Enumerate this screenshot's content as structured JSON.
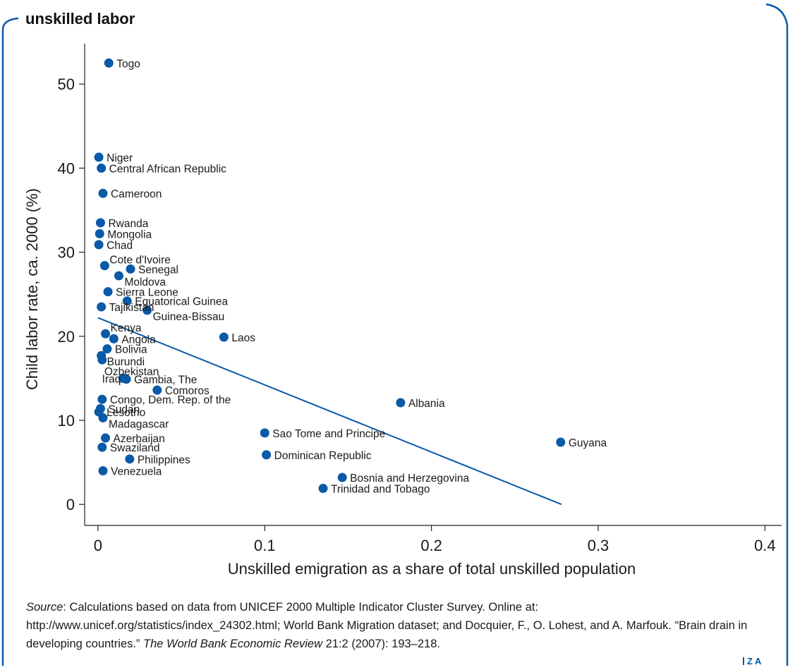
{
  "figure": {
    "title": "unskilled labor",
    "source_label": "Source",
    "source_text": ": Calculations based on data from UNICEF 2000 Multiple Indicator Cluster Survey. Online at: http://www.unicef.org/statistics/index_24302.html; World Bank Migration dataset; and Docquier, F., O. Lohest, and A. Marfouk. “Brain drain in developing countries.” ",
    "source_journal": "The World Bank Economic Review",
    "source_tail": " 21:2 (2007): 193–218.",
    "logo": "ZA"
  },
  "chart_data": {
    "type": "scatter",
    "title": "",
    "xlabel": "Unskilled emigration as a share of total unskilled population",
    "ylabel": "Child labor rate, ca. 2000 (%)",
    "xlim": [
      -0.008,
      0.41
    ],
    "ylim": [
      -2.5,
      54.8
    ],
    "xticks": [
      0,
      0.1,
      0.2,
      0.3,
      0.4
    ],
    "xtick_labels": [
      "0",
      "0.1",
      "0.2",
      "0.3",
      "0.4"
    ],
    "yticks": [
      0,
      10,
      20,
      30,
      40,
      50
    ],
    "ytick_labels": [
      "0",
      "10",
      "20",
      "30",
      "40",
      "50"
    ],
    "grid": false,
    "marker_color": "#0a5aa8",
    "line_color": "#0a5aa8",
    "trend_line": {
      "x": [
        0.0,
        0.278
      ],
      "y": [
        22.2,
        0.0
      ]
    },
    "points": [
      {
        "label": "Togo",
        "x": 0.0065,
        "y": 52.5,
        "lpos": "right"
      },
      {
        "label": "Niger",
        "x": 0.0005,
        "y": 41.3,
        "lpos": "right"
      },
      {
        "label": "Central African Republic",
        "x": 0.002,
        "y": 40.0,
        "lpos": "right"
      },
      {
        "label": "Cameroon",
        "x": 0.003,
        "y": 37.0,
        "lpos": "right"
      },
      {
        "label": "Rwanda",
        "x": 0.0015,
        "y": 33.5,
        "lpos": "right"
      },
      {
        "label": "Mongolia",
        "x": 0.001,
        "y": 32.2,
        "lpos": "right"
      },
      {
        "label": "Chad",
        "x": 0.0005,
        "y": 30.9,
        "lpos": "right"
      },
      {
        "label": "Cote d'Ivoire",
        "x": 0.004,
        "y": 28.4,
        "lpos": "right-up"
      },
      {
        "label": "Senegal",
        "x": 0.0195,
        "y": 28.0,
        "lpos": "right"
      },
      {
        "label": "Moldova",
        "x": 0.0125,
        "y": 27.2,
        "lpos": "right-down"
      },
      {
        "label": "Sierra Leone",
        "x": 0.006,
        "y": 25.3,
        "lpos": "right"
      },
      {
        "label": "Equatorical Guinea",
        "x": 0.0175,
        "y": 24.2,
        "lpos": "right"
      },
      {
        "label": "Tajikistan",
        "x": 0.002,
        "y": 23.5,
        "lpos": "right"
      },
      {
        "label": "Guinea-Bissau",
        "x": 0.0295,
        "y": 23.1,
        "lpos": "right-down"
      },
      {
        "label": "Kenya",
        "x": 0.0045,
        "y": 20.3,
        "lpos": "right-up"
      },
      {
        "label": "Angola",
        "x": 0.0095,
        "y": 19.7,
        "lpos": "right"
      },
      {
        "label": "Laos",
        "x": 0.0755,
        "y": 19.9,
        "lpos": "right"
      },
      {
        "label": "Bolivia",
        "x": 0.0055,
        "y": 18.5,
        "lpos": "right"
      },
      {
        "label": "Burundi",
        "x": 0.002,
        "y": 17.7,
        "lpos": "right-down"
      },
      {
        "label": "Ozbekistan",
        "x": 0.0025,
        "y": 17.2,
        "lpos": "right-down2"
      },
      {
        "label": "Iraq",
        "x": 0.015,
        "y": 15.0,
        "lpos": "left"
      },
      {
        "label": "Gambia, The",
        "x": 0.017,
        "y": 14.9,
        "lpos": "right"
      },
      {
        "label": "Comoros",
        "x": 0.0355,
        "y": 13.6,
        "lpos": "right"
      },
      {
        "label": "Congo, Dem. Rep. of the",
        "x": 0.0025,
        "y": 12.5,
        "lpos": "right"
      },
      {
        "label": "Albania",
        "x": 0.1815,
        "y": 12.1,
        "lpos": "right"
      },
      {
        "label": "Sudan",
        "x": 0.0015,
        "y": 11.4,
        "lpos": "right"
      },
      {
        "label": "Lesotho",
        "x": 0.0005,
        "y": 11.0,
        "lpos": "right"
      },
      {
        "label": "Madagascar",
        "x": 0.003,
        "y": 10.3,
        "lpos": "right-down"
      },
      {
        "label": "Sao Tome and Principe",
        "x": 0.1,
        "y": 8.5,
        "lpos": "right"
      },
      {
        "label": "Azerbaijan",
        "x": 0.0045,
        "y": 7.9,
        "lpos": "right"
      },
      {
        "label": "Guyana",
        "x": 0.2775,
        "y": 7.4,
        "lpos": "right"
      },
      {
        "label": "Swaziland",
        "x": 0.0025,
        "y": 6.8,
        "lpos": "right"
      },
      {
        "label": "Dominican Republic",
        "x": 0.101,
        "y": 5.9,
        "lpos": "right"
      },
      {
        "label": "Philippines",
        "x": 0.019,
        "y": 5.4,
        "lpos": "right"
      },
      {
        "label": "Venezuela",
        "x": 0.003,
        "y": 4.0,
        "lpos": "right"
      },
      {
        "label": "Bosnia and Herzegovina",
        "x": 0.1465,
        "y": 3.2,
        "lpos": "right"
      },
      {
        "label": "Trinidad and Tobago",
        "x": 0.135,
        "y": 1.9,
        "lpos": "right"
      }
    ]
  }
}
